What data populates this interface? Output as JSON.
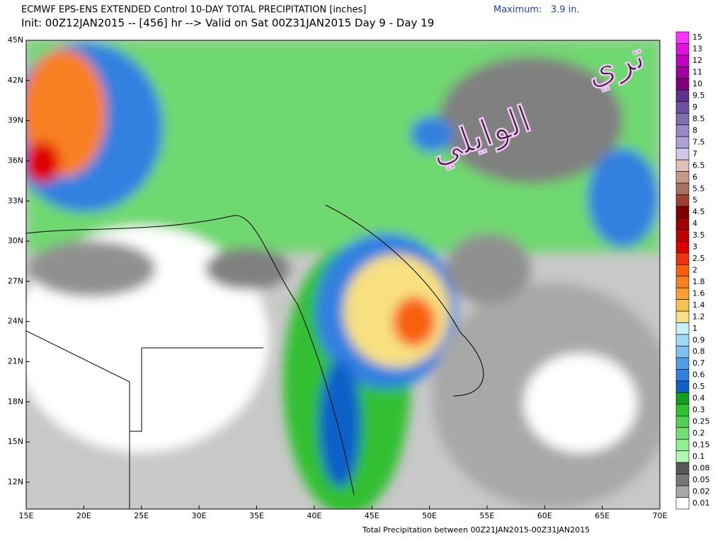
{
  "header": {
    "title": "ECMWF EPS-ENS EXTENDED Control 10-DAY TOTAL PRECIPITATION [inches]",
    "maximum": "Maximum:   3.9 in.",
    "subtitle": "Init: 00Z12JAN2015 -- [456] hr --> Valid on Sat 00Z31JAN2015  Day 9 - Day 19"
  },
  "map": {
    "lat_labels": [
      "45N",
      "42N",
      "39N",
      "36N",
      "33N",
      "30N",
      "27N",
      "24N",
      "21N",
      "18N",
      "15N",
      "12N"
    ],
    "lon_labels": [
      "15E",
      "20E",
      "25E",
      "30E",
      "35E",
      "40E",
      "45E",
      "50E",
      "55E",
      "60E",
      "65E",
      "70E"
    ],
    "watermark": [
      "تري",
      "الوايلي"
    ]
  },
  "colorbar": {
    "levels": [
      "15",
      "13",
      "12",
      "11",
      "10",
      "9.5",
      "9",
      "8.5",
      "8",
      "7.5",
      "7",
      "6.5",
      "6",
      "5.5",
      "5",
      "4.5",
      "4",
      "3.5",
      "3",
      "2.5",
      "2",
      "1.8",
      "1.6",
      "1.4",
      "1.2",
      "1",
      "0.9",
      "0.8",
      "0.7",
      "0.6",
      "0.5",
      "0.4",
      "0.3",
      "0.25",
      "0.2",
      "0.15",
      "0.1",
      "0.08",
      "0.05",
      "0.02",
      "0.01"
    ],
    "colors": [
      "#ff33ff",
      "#e010e0",
      "#c000c0",
      "#a000a0",
      "#800080",
      "#603090",
      "#7050a0",
      "#8070b0",
      "#9a88c8",
      "#b0a0d8",
      "#d0c8e8",
      "#e0c0b8",
      "#c89888",
      "#a87060",
      "#a04030",
      "#800000",
      "#a00000",
      "#c00000",
      "#e00000",
      "#f03010",
      "#f86010",
      "#f88020",
      "#f8a030",
      "#f8c050",
      "#f8e080",
      "#c8f0f8",
      "#a0d8f8",
      "#80c0f0",
      "#50a0e8",
      "#3080e0",
      "#1060c8",
      "#10a020",
      "#30c030",
      "#50d050",
      "#70e070",
      "#90f090",
      "#b0f8b0",
      "#585858",
      "#787878",
      "#a8a8a8",
      "#ffffff"
    ]
  },
  "footer": "Total Precipitation between 00Z21JAN2015-00Z31JAN2015"
}
